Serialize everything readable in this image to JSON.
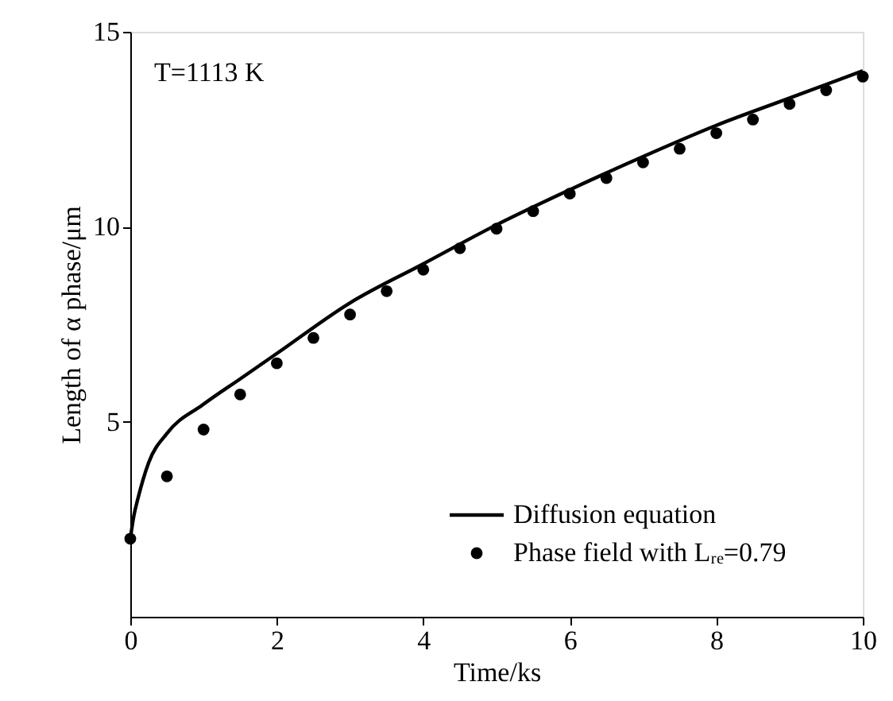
{
  "chart_data": {
    "type": "line",
    "xlabel": "Time/ks",
    "ylabel": "Length of α phase/μm",
    "annotations": [
      "T=1113 K"
    ],
    "xlim": [
      0,
      10
    ],
    "xticks": [
      0,
      2,
      4,
      6,
      8,
      10
    ],
    "ylim": [
      0,
      15
    ],
    "yticks": [
      5,
      10,
      15
    ],
    "grid": false,
    "legend": "bottom right",
    "series": [
      {
        "name": "Diffusion equation",
        "type": "line",
        "color": "#000000",
        "line_style": "solid",
        "marker": "none",
        "x": [
          0,
          0.05,
          0.1,
          0.25,
          0.5,
          1,
          1.5,
          2,
          3,
          4,
          5,
          6,
          7,
          8,
          9,
          10
        ],
        "values": [
          2.0,
          2.6,
          3.0,
          3.95,
          4.7,
          5.45,
          6.1,
          6.75,
          8.05,
          9.05,
          10.05,
          10.95,
          11.8,
          12.6,
          13.3,
          14.0
        ]
      },
      {
        "name": "Phase field with Lᵣₑ=0.79",
        "type": "scatter",
        "color": "#000000",
        "marker": "circle",
        "x": [
          0,
          0.5,
          1,
          1.5,
          2,
          2.5,
          3,
          3.5,
          4,
          4.5,
          5,
          5.5,
          6,
          6.5,
          7,
          7.5,
          8,
          8.5,
          9,
          9.5,
          10
        ],
        "values": [
          2.0,
          3.6,
          4.8,
          5.7,
          6.5,
          7.15,
          7.75,
          8.35,
          8.9,
          9.45,
          9.95,
          10.4,
          10.85,
          11.25,
          11.65,
          12.0,
          12.4,
          12.75,
          13.15,
          13.5,
          13.85
        ]
      }
    ]
  }
}
